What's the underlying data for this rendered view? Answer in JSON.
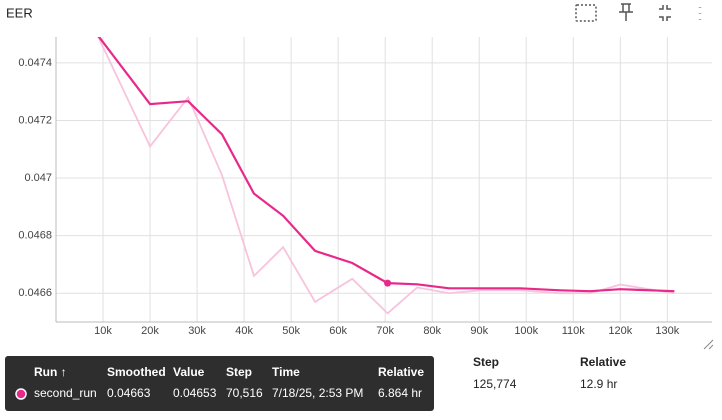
{
  "chart_data": {
    "type": "line",
    "title": "EER",
    "x": [
      8700,
      20000,
      28100,
      35300,
      42100,
      48300,
      55100,
      63000,
      70516,
      76800,
      83600,
      90200,
      98700,
      107200,
      113600,
      120000,
      131500
    ],
    "series": [
      {
        "color": "#e7298a",
        "values": [
          0.0475,
          0.047257,
          0.047267,
          0.047152,
          0.046946,
          0.046869,
          0.046747,
          0.046705,
          0.046635,
          0.046631,
          0.046617,
          0.046617,
          0.046617,
          0.04661,
          0.046607,
          0.046614,
          0.046607
        ]
      },
      {
        "color": "#f7c3dd",
        "values": [
          0.0475,
          0.04711,
          0.04728,
          0.04701,
          0.04666,
          0.04676,
          0.04657,
          0.04665,
          0.04653,
          0.04662,
          0.0466,
          0.04661,
          0.04661,
          0.0466,
          0.0466,
          0.04663,
          0.0466
        ]
      }
    ],
    "xlim": [
      0,
      139500
    ],
    "ylim": [
      0.0465,
      0.04749
    ],
    "xticks": [
      {
        "value": 10000,
        "label": "10k"
      },
      {
        "value": 20000,
        "label": "20k"
      },
      {
        "value": 30000,
        "label": "30k"
      },
      {
        "value": 40000,
        "label": "40k"
      },
      {
        "value": 50000,
        "label": "50k"
      },
      {
        "value": 60000,
        "label": "60k"
      },
      {
        "value": 70000,
        "label": "70k"
      },
      {
        "value": 80000,
        "label": "80k"
      },
      {
        "value": 90000,
        "label": "90k"
      },
      {
        "value": 100000,
        "label": "100k"
      },
      {
        "value": 110000,
        "label": "110k"
      },
      {
        "value": 120000,
        "label": "120k"
      },
      {
        "value": 130000,
        "label": "130k"
      }
    ],
    "yticks": [
      0.0466,
      0.0468,
      0.047,
      0.0472,
      0.0474
    ],
    "grid": true
  },
  "tooltip": {
    "columns": [
      "Run ↑",
      "Smoothed",
      "Value",
      "Step",
      "Time",
      "Relative"
    ],
    "rows": [
      [
        "second_run",
        "0.04663",
        "0.04653",
        "70,516",
        "7/18/25, 2:53 PM",
        "6.864 hr"
      ]
    ]
  },
  "table": {
    "columns": [
      "Step",
      "Relative"
    ],
    "rows": [
      [
        "125,774",
        "12.9 hr"
      ]
    ]
  }
}
